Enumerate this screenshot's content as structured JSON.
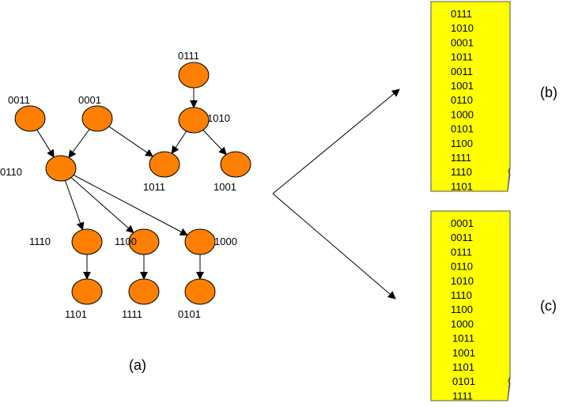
{
  "colors": {
    "node_fill": "#ff8000",
    "node_stroke": "#000000",
    "page_fill": "#ffff00"
  },
  "graph": {
    "caption": "(a)",
    "nodes": [
      "0111",
      "0011",
      "0001",
      "1010",
      "0110",
      "1011",
      "1001",
      "1110",
      "1100",
      "1000",
      "1101",
      "1111",
      "0101"
    ],
    "edges": [
      [
        "0111",
        "1010"
      ],
      [
        "0011",
        "0110"
      ],
      [
        "0001",
        "0110"
      ],
      [
        "0001",
        "1011"
      ],
      [
        "1010",
        "1011"
      ],
      [
        "1010",
        "1001"
      ],
      [
        "0110",
        "1110"
      ],
      [
        "0110",
        "1100"
      ],
      [
        "0110",
        "1000"
      ],
      [
        "1110",
        "1101"
      ],
      [
        "1100",
        "1111"
      ],
      [
        "1000",
        "0101"
      ]
    ]
  },
  "list_b": {
    "caption": "(b)",
    "items": [
      "0111",
      "1010",
      "0001",
      "1011",
      "0011",
      "1001",
      "0110",
      "1000",
      "0101",
      "1100",
      "1111",
      "1110",
      "1101"
    ]
  },
  "list_c": {
    "caption": "(c)",
    "items": [
      "0001",
      "0011",
      "0111",
      "0110",
      "1010",
      "1110",
      "1100",
      "1000",
      "1011",
      "1001",
      "1101",
      "0101",
      "1111"
    ]
  }
}
